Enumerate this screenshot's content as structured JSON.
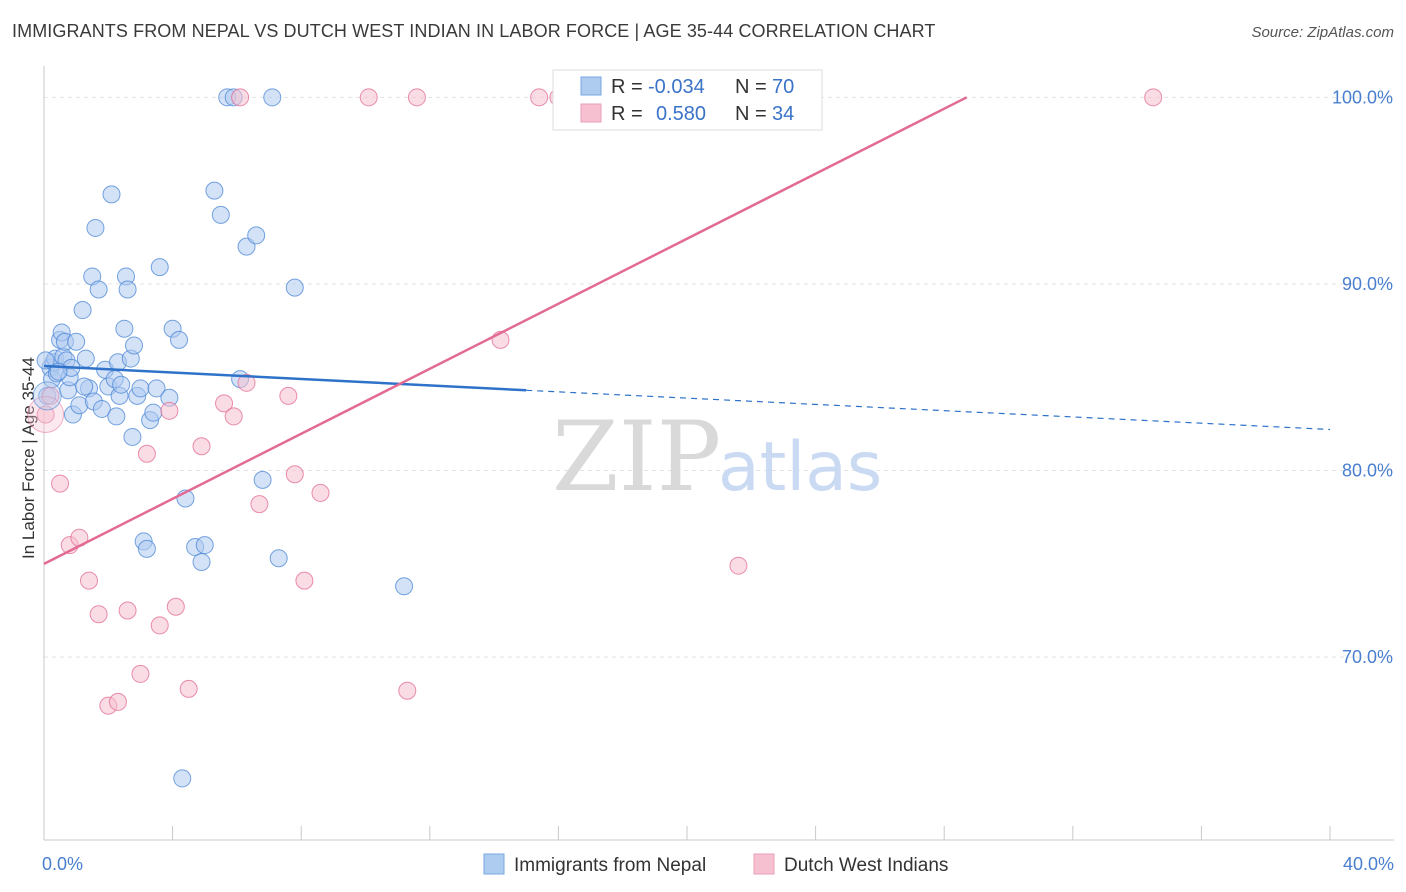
{
  "title": "IMMIGRANTS FROM NEPAL VS DUTCH WEST INDIAN IN LABOR FORCE | AGE 35-44 CORRELATION CHART",
  "source": "Source: ZipAtlas.com",
  "watermark": {
    "zip": "ZIP",
    "atlas": "atlas"
  },
  "stats_legend": {
    "rows": [
      {
        "r_label": "R =",
        "r_value": "-0.034",
        "n_label": "N =",
        "n_value": "70",
        "color": "#aecbf0"
      },
      {
        "r_label": "R =",
        "r_value": "0.580",
        "n_label": "N =",
        "n_value": "34",
        "color": "#f6c0d0"
      }
    ]
  },
  "bottom_legend": [
    {
      "label": "Immigrants from Nepal",
      "color": "#aecbf0"
    },
    {
      "label": "Dutch West Indians",
      "color": "#f6c0d0"
    }
  ],
  "chart_data": {
    "type": "scatter",
    "title": "IMMIGRANTS FROM NEPAL VS DUTCH WEST INDIAN IN LABOR FORCE | AGE 35-44 CORRELATION CHART",
    "xlabel": "",
    "ylabel": "In Labor Force | Age 35-44",
    "xlim": [
      0,
      40
    ],
    "ylim": [
      60.2,
      102
    ],
    "x_tick_labels": [
      {
        "value": 0,
        "label": "0.0%"
      },
      {
        "value": 40,
        "label": "40.0%"
      }
    ],
    "y_tick_labels": [
      {
        "value": 100,
        "label": "100.0%"
      },
      {
        "value": 90,
        "label": "90.0%"
      },
      {
        "value": 80,
        "label": "80.0%"
      },
      {
        "value": 70,
        "label": "70.0%"
      }
    ],
    "grid": true,
    "legend_position": "bottom-center",
    "series": [
      {
        "name": "Immigrants from Nepal",
        "color": "#4a86d6",
        "fill": "#aecbf0",
        "points": [
          [
            0.1,
            84.0
          ],
          [
            0.2,
            85.5
          ],
          [
            0.25,
            84.9
          ],
          [
            0.3,
            85.8
          ],
          [
            0.35,
            86.0
          ],
          [
            0.4,
            85.2
          ],
          [
            0.5,
            87.0
          ],
          [
            0.55,
            87.4
          ],
          [
            0.6,
            86.1
          ],
          [
            0.65,
            86.9
          ],
          [
            0.7,
            85.9
          ],
          [
            0.75,
            84.3
          ],
          [
            0.8,
            85.0
          ],
          [
            0.85,
            85.5
          ],
          [
            0.9,
            83.0
          ],
          [
            1.0,
            86.9
          ],
          [
            1.1,
            83.5
          ],
          [
            1.2,
            88.6
          ],
          [
            1.3,
            86.0
          ],
          [
            1.4,
            84.4
          ],
          [
            1.5,
            90.4
          ],
          [
            1.55,
            83.7
          ],
          [
            1.6,
            93.0
          ],
          [
            1.7,
            89.7
          ],
          [
            1.8,
            83.3
          ],
          [
            1.9,
            85.4
          ],
          [
            2.0,
            84.5
          ],
          [
            2.1,
            94.8
          ],
          [
            2.2,
            84.9
          ],
          [
            2.25,
            82.9
          ],
          [
            2.3,
            85.8
          ],
          [
            2.35,
            84.0
          ],
          [
            2.4,
            84.6
          ],
          [
            2.5,
            87.6
          ],
          [
            2.55,
            90.4
          ],
          [
            2.6,
            89.7
          ],
          [
            2.7,
            86.0
          ],
          [
            2.75,
            81.8
          ],
          [
            2.8,
            86.7
          ],
          [
            2.9,
            84.0
          ],
          [
            3.0,
            84.4
          ],
          [
            3.1,
            76.2
          ],
          [
            3.2,
            75.8
          ],
          [
            3.3,
            82.7
          ],
          [
            3.4,
            83.1
          ],
          [
            3.5,
            84.4
          ],
          [
            3.6,
            90.9
          ],
          [
            3.9,
            83.9
          ],
          [
            4.0,
            87.6
          ],
          [
            4.2,
            87.0
          ],
          [
            4.3,
            63.5
          ],
          [
            4.4,
            78.5
          ],
          [
            4.7,
            75.9
          ],
          [
            4.9,
            75.1
          ],
          [
            5.0,
            76.0
          ],
          [
            5.3,
            95.0
          ],
          [
            5.5,
            93.7
          ],
          [
            5.7,
            100.0
          ],
          [
            5.9,
            100.0
          ],
          [
            6.1,
            84.9
          ],
          [
            6.3,
            92.0
          ],
          [
            6.6,
            92.6
          ],
          [
            6.8,
            79.5
          ],
          [
            7.1,
            100.0
          ],
          [
            7.3,
            75.3
          ],
          [
            7.8,
            89.8
          ],
          [
            11.2,
            73.8
          ],
          [
            0.05,
            85.9
          ],
          [
            0.45,
            85.3
          ],
          [
            1.25,
            84.5
          ]
        ],
        "trend": {
          "x_start": 0,
          "y_start": 85.6,
          "x_solid_end": 15,
          "y_solid_end": 84.3,
          "x_end": 40,
          "y_end": 82.2
        }
      },
      {
        "name": "Dutch West Indians",
        "color": "#e26a93",
        "fill": "#f6c0d0",
        "points": [
          [
            0.05,
            83.0
          ],
          [
            0.5,
            79.3
          ],
          [
            0.8,
            76.0
          ],
          [
            1.1,
            76.4
          ],
          [
            1.4,
            74.1
          ],
          [
            1.7,
            72.3
          ],
          [
            2.0,
            67.4
          ],
          [
            2.3,
            67.6
          ],
          [
            2.6,
            72.5
          ],
          [
            3.0,
            69.1
          ],
          [
            3.2,
            80.9
          ],
          [
            3.6,
            71.7
          ],
          [
            3.9,
            83.2
          ],
          [
            4.1,
            72.7
          ],
          [
            4.5,
            68.3
          ],
          [
            4.9,
            81.3
          ],
          [
            5.6,
            83.6
          ],
          [
            5.9,
            82.9
          ],
          [
            6.1,
            100.0
          ],
          [
            6.3,
            84.7
          ],
          [
            6.7,
            78.2
          ],
          [
            7.6,
            84.0
          ],
          [
            7.8,
            79.8
          ],
          [
            8.1,
            74.1
          ],
          [
            8.6,
            78.8
          ],
          [
            10.1,
            100.0
          ],
          [
            11.3,
            68.2
          ],
          [
            11.6,
            100.0
          ],
          [
            14.2,
            87.0
          ],
          [
            15.4,
            100.0
          ],
          [
            16.0,
            100.0
          ],
          [
            21.6,
            74.9
          ],
          [
            34.5,
            100.0
          ],
          [
            0.2,
            84.0
          ]
        ],
        "trend": {
          "x_start": 0,
          "y_start": 75.0,
          "x_end": 28.7,
          "y_end": 100.0
        }
      }
    ]
  }
}
